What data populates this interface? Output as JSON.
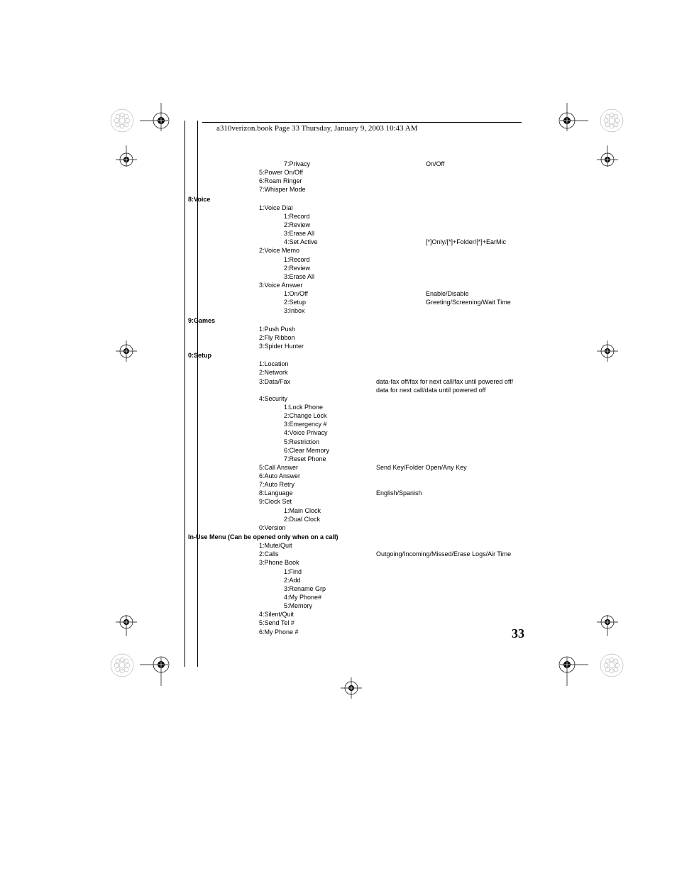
{
  "header": "a310verizon.book  Page 33  Thursday, January 9, 2003  10:43 AM",
  "page_number": "33",
  "menu": {
    "pre_section": {
      "items": [
        {
          "label": "7:Privacy",
          "desc": "On/Off",
          "level": 2
        },
        {
          "label": "5:Power On/Off",
          "level": 1
        },
        {
          "label": "6:Roam Ringer",
          "level": 1
        },
        {
          "label": "7:Whisper Mode",
          "level": 1
        }
      ]
    },
    "sections": [
      {
        "title": "8:Voice",
        "items": [
          {
            "label": "1:Voice Dial",
            "level": 1
          },
          {
            "label": "1:Record",
            "level": 2
          },
          {
            "label": "2:Review",
            "level": 2
          },
          {
            "label": "3:Erase All",
            "level": 2
          },
          {
            "label": "4:Set Active",
            "desc": "[*]Only/[*]+Folder/[*]+EarMic",
            "level": 2
          },
          {
            "label": "2:Voice Memo",
            "level": 1
          },
          {
            "label": "1:Record",
            "level": 2
          },
          {
            "label": "2:Review",
            "level": 2
          },
          {
            "label": "3:Erase All",
            "level": 2
          },
          {
            "label": "3:Voice Answer",
            "level": 1
          },
          {
            "label": "1:On/Off",
            "desc": "Enable/Disable",
            "level": 2
          },
          {
            "label": "2:Setup",
            "desc": "Greeting/Screening/Wait Time",
            "level": 2
          },
          {
            "label": "3:Inbox",
            "level": 2
          }
        ]
      },
      {
        "title": "9:Games",
        "items": [
          {
            "label": "1:Push Push",
            "level": 1
          },
          {
            "label": "2:Fly Ribbon",
            "level": 1
          },
          {
            "label": "3:Spider Hunter",
            "level": 1
          }
        ]
      },
      {
        "title": "0:Setup",
        "items": [
          {
            "label": "1:Location",
            "level": 1
          },
          {
            "label": "2:Network",
            "level": 1
          },
          {
            "label": "3:Data/Fax",
            "desc": "data-fax off/fax for next call/fax until powered off/",
            "desc2": "data for next call/data until powered off",
            "level": 1
          },
          {
            "label": "4:Security",
            "level": 1
          },
          {
            "label": "1:Lock Phone",
            "level": 2
          },
          {
            "label": "2:Change Lock",
            "level": 2
          },
          {
            "label": "3:Emergency #",
            "level": 2
          },
          {
            "label": "4:Voice Privacy",
            "level": 2
          },
          {
            "label": "5:Restriction",
            "level": 2
          },
          {
            "label": "6:Clear Memory",
            "level": 2
          },
          {
            "label": "7:Reset Phone",
            "level": 2
          },
          {
            "label": "5:Call Answer",
            "desc": "Send Key/Folder Open/Any Key",
            "level": 1
          },
          {
            "label": "6:Auto Answer",
            "level": 1
          },
          {
            "label": "7:Auto Retry",
            "level": 1
          },
          {
            "label": "8:Language",
            "desc": "English/Spanish",
            "level": 1
          },
          {
            "label": "9:Clock Set",
            "level": 1
          },
          {
            "label": "1:Main Clock",
            "level": 2
          },
          {
            "label": "2:Dual Clock",
            "level": 2
          },
          {
            "label": "0:Version",
            "level": 1
          }
        ]
      },
      {
        "title": "In-Use Menu (Can be opened only when on a call)",
        "items": [
          {
            "label": "1:Mute/Quit",
            "level": 1
          },
          {
            "label": "2:Calls",
            "desc": "Outgoing/Incoming/Missed/Erase Logs/Air Time",
            "level": 1
          },
          {
            "label": "3:Phone Book",
            "level": 1
          },
          {
            "label": "1:Find",
            "level": 2
          },
          {
            "label": "2:Add",
            "level": 2
          },
          {
            "label": "3:Rename Grp",
            "level": 2
          },
          {
            "label": "4:My Phone#",
            "level": 2
          },
          {
            "label": "5:Memory",
            "level": 2
          },
          {
            "label": "4:Silent/Quit",
            "level": 1
          },
          {
            "label": "5:Send Tel #",
            "level": 1
          },
          {
            "label": "6:My Phone #",
            "level": 1
          }
        ]
      }
    ]
  }
}
